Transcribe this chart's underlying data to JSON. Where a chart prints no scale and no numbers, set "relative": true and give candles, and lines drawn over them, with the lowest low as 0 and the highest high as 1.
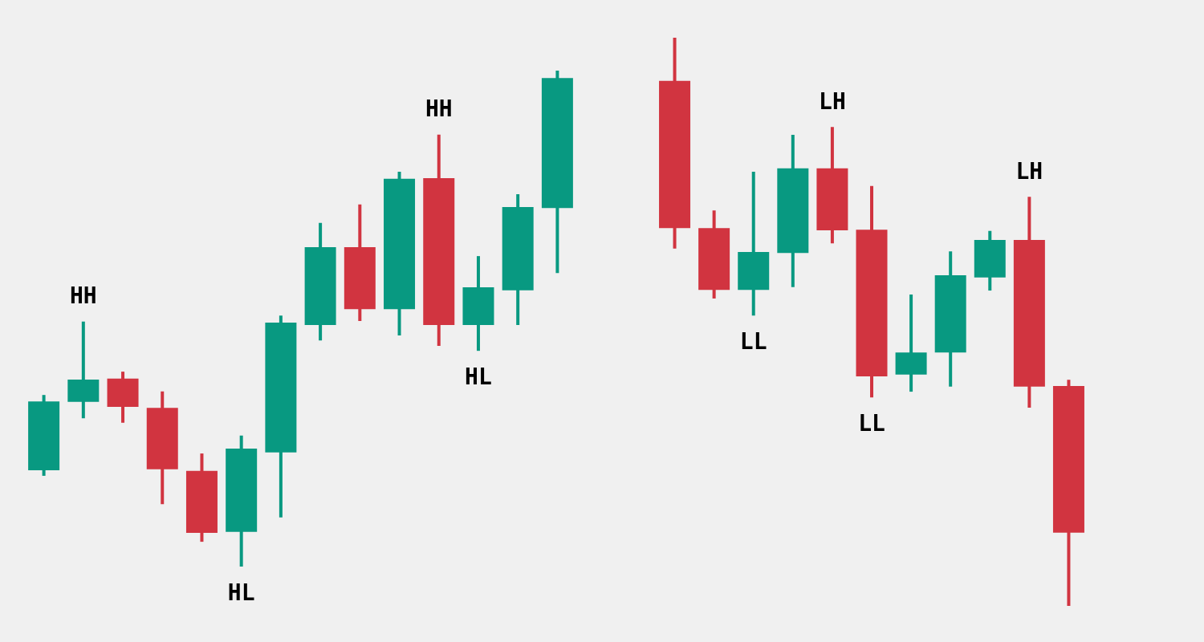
{
  "chart_data": [
    {
      "type": "candlestick",
      "relative": true,
      "categories": [
        null,
        null,
        null,
        null,
        null,
        null,
        null,
        null,
        null,
        null,
        null,
        null,
        null,
        null
      ],
      "ohlc": [
        [
          0.194,
          0.346,
          0.183,
          0.333
        ],
        [
          0.332,
          0.494,
          0.299,
          0.377
        ],
        [
          0.379,
          0.393,
          0.29,
          0.322
        ],
        [
          0.32,
          0.353,
          0.126,
          0.196
        ],
        [
          0.193,
          0.228,
          0.05,
          0.068
        ],
        [
          0.07,
          0.264,
          0,
          0.238
        ],
        [
          0.23,
          0.506,
          0.099,
          0.492
        ],
        [
          0.487,
          0.693,
          0.456,
          0.644
        ],
        [
          0.644,
          0.73,
          0.495,
          0.519
        ],
        [
          0.519,
          0.796,
          0.466,
          0.782
        ],
        [
          0.783,
          0.871,
          0.445,
          0.487
        ],
        [
          0.487,
          0.626,
          0.435,
          0.563
        ],
        [
          0.557,
          0.751,
          0.487,
          0.725
        ],
        [
          0.723,
          1,
          0.592,
          0.985
        ]
      ],
      "colors": [
        "#089981",
        "#089981",
        "#d13440",
        "#d13440",
        "#d13440",
        "#089981",
        "#089981",
        "#089981",
        "#d13440",
        "#089981",
        "#d13440",
        "#089981",
        "#089981",
        "#089981"
      ],
      "annotations": [
        {
          "text": "HH",
          "y": 0.494
        },
        {
          "text": "HL",
          "y": 0
        },
        {
          "text": "HH",
          "y": 0.871
        },
        {
          "text": "HL",
          "y": 0.435
        }
      ]
    },
    {
      "type": "candlestick",
      "relative": true,
      "categories": [
        null,
        null,
        null,
        null,
        null,
        null,
        null,
        null,
        null,
        null,
        null
      ],
      "ohlc": [
        [
          0.924,
          1,
          0.629,
          0.665
        ],
        [
          0.665,
          0.696,
          0.541,
          0.556
        ],
        [
          0.556,
          0.764,
          0.511,
          0.623
        ],
        [
          0.621,
          0.829,
          0.561,
          0.77
        ],
        [
          0.77,
          0.843,
          0.638,
          0.661
        ],
        [
          0.662,
          0.739,
          0.367,
          0.404
        ],
        [
          0.407,
          0.548,
          0.377,
          0.446
        ],
        [
          0.446,
          0.624,
          0.386,
          0.582
        ],
        [
          0.578,
          0.66,
          0.555,
          0.644
        ],
        [
          0.644,
          0.72,
          0.349,
          0.386
        ],
        [
          0.387,
          0.398,
          0,
          0.129
        ]
      ],
      "colors": [
        "#d13440",
        "#d13440",
        "#089981",
        "#089981",
        "#d13440",
        "#d13440",
        "#089981",
        "#089981",
        "#089981",
        "#d13440",
        "#d13440"
      ],
      "annotations": [
        {
          "text": "LL",
          "y": 0.511
        },
        {
          "text": "LH",
          "y": 0.843
        },
        {
          "text": "LL",
          "y": 0.367
        },
        {
          "text": "LH",
          "y": 0.72
        }
      ]
    }
  ]
}
